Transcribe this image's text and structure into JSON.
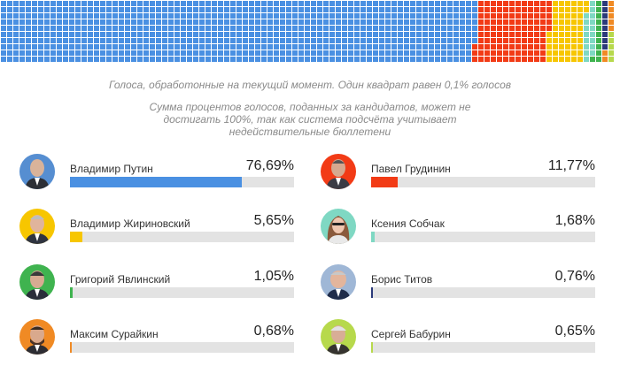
{
  "notes": {
    "line1": "Голоса, обработонные на текущий момент. Один квадрат равен 0,1% голосов",
    "line2": "Сумма процентов голосов, поданных за кандидатов, может не достигать 100%, так как система подсчёта учитывает недействительные бюллетени"
  },
  "chart_data": {
    "type": "bar",
    "categories": [
      "Владимир Путин",
      "Павел Грудинин",
      "Владимир Жириновский",
      "Ксения Собчак",
      "Григорий Явлинский",
      "Борис Титов",
      "Максим Сурайкин",
      "Сергей Бабурин"
    ],
    "values": [
      76.69,
      11.77,
      5.65,
      1.68,
      1.05,
      0.76,
      0.68,
      0.65
    ],
    "value_labels": [
      "76,69%",
      "11,77%",
      "5,65%",
      "1,68%",
      "1,05%",
      "0,76%",
      "0,68%",
      "0,65%"
    ],
    "colors": [
      "#4a90e2",
      "#f23b16",
      "#f7c600",
      "#7fd8c3",
      "#3fb34f",
      "#2b3a7a",
      "#f08a24",
      "#b7d94c"
    ],
    "ylim": [
      0,
      100
    ],
    "waffle_unit_percent": 0.1
  },
  "candidates": [
    {
      "name": "Владимир Путин",
      "pct": "76,69%",
      "value": 76.69,
      "color": "#4a90e2",
      "icon": "portrait-putin-icon"
    },
    {
      "name": "Павел Грудинин",
      "pct": "11,77%",
      "value": 11.77,
      "color": "#f23b16",
      "icon": "portrait-grudinin-icon"
    },
    {
      "name": "Владимир Жириновский",
      "pct": "5,65%",
      "value": 5.65,
      "color": "#f7c600",
      "icon": "portrait-zhirinovsky-icon"
    },
    {
      "name": "Ксения Собчак",
      "pct": "1,68%",
      "value": 1.68,
      "color": "#7fd8c3",
      "icon": "portrait-sobchak-icon"
    },
    {
      "name": "Григорий Явлинский",
      "pct": "1,05%",
      "value": 1.05,
      "color": "#3fb34f",
      "icon": "portrait-yavlinsky-icon"
    },
    {
      "name": "Борис Титов",
      "pct": "0,76%",
      "value": 0.76,
      "color": "#2b3a7a",
      "icon": "portrait-titov-icon"
    },
    {
      "name": "Максим Сурайкин",
      "pct": "0,68%",
      "value": 0.68,
      "color": "#f08a24",
      "icon": "portrait-suraykin-icon"
    },
    {
      "name": "Сергей Бабурин",
      "pct": "0,65%",
      "value": 0.65,
      "color": "#b7d94c",
      "icon": "portrait-baburin-icon"
    }
  ]
}
